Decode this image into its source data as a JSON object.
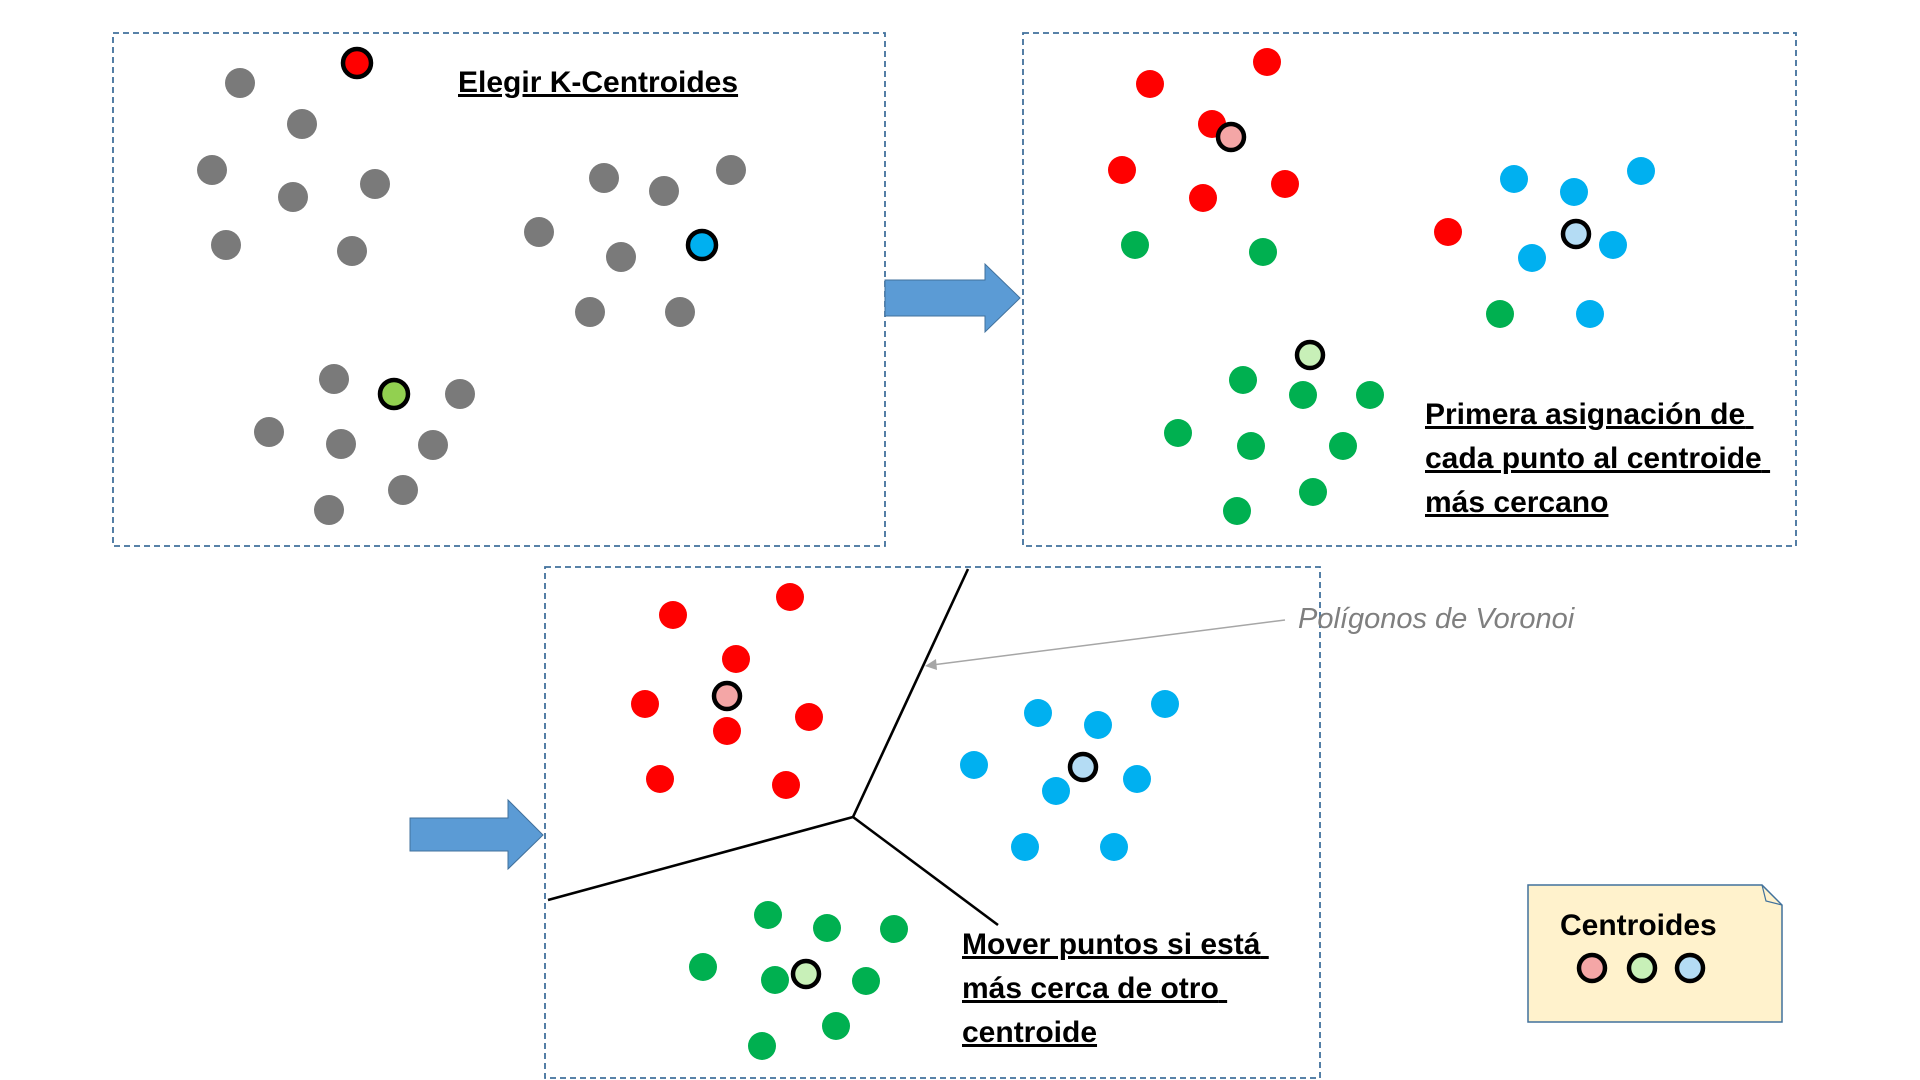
{
  "panels": {
    "panel1": {
      "title": "Elegir K-Centroides"
    },
    "panel2": {
      "caption_lines": [
        "Primera asignación de",
        "cada punto al centroide",
        "más cercano"
      ]
    },
    "panel3": {
      "caption_lines": [
        "Mover puntos si está",
        "más cerca de otro",
        "centroide"
      ]
    }
  },
  "annotation": {
    "voronoi": "Polígonos de Voronoi"
  },
  "legend": {
    "title": "Centroides"
  },
  "colors": {
    "gray_point": "#7a7a7a",
    "red": "#ff0000",
    "blue": "#00b0f0",
    "green": "#00b050",
    "red_centroid_fill": "#f4a6a6",
    "green_centroid_fill": "#c8f0b8",
    "blue_centroid_fill": "#b4dcf4",
    "panel1_red_centroid": "#ff0000",
    "panel1_blue_centroid": "#00b0f0",
    "panel1_green_centroid": "#92d050",
    "panel_border": "#41719c",
    "arrow": "#5b9bd5",
    "legend_fill": "#fff2cc",
    "annotation_text": "#7f7f7f"
  }
}
